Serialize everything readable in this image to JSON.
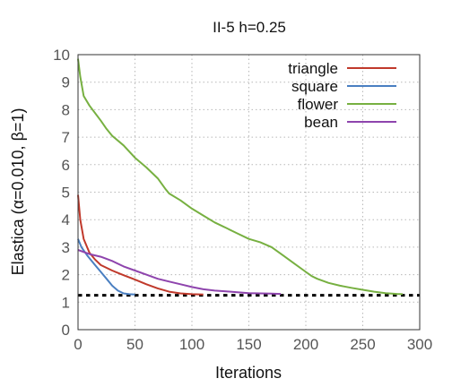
{
  "chart_data": {
    "type": "line",
    "title": "II-5  h=0.25",
    "xlabel": "Iterations",
    "ylabel": "Elastica (α=0.010, β=1)",
    "xlim": [
      0,
      300
    ],
    "ylim": [
      0,
      10
    ],
    "xticks": [
      "0",
      "50",
      "100",
      "150",
      "200",
      "250",
      "300"
    ],
    "yticks": [
      "0",
      "1",
      "2",
      "3",
      "4",
      "5",
      "6",
      "7",
      "8",
      "9",
      "10"
    ],
    "grid": true,
    "legend_position": "top-right",
    "reference_line": {
      "y": 1.25,
      "style": "dashed",
      "color": "#000000"
    },
    "series": [
      {
        "name": "triangle",
        "color": "#c0392b",
        "points": [
          [
            0,
            4.9
          ],
          [
            2,
            4.0
          ],
          [
            5,
            3.3
          ],
          [
            10,
            2.8
          ],
          [
            15,
            2.55
          ],
          [
            20,
            2.35
          ],
          [
            30,
            2.15
          ],
          [
            40,
            1.98
          ],
          [
            50,
            1.82
          ],
          [
            60,
            1.65
          ],
          [
            70,
            1.5
          ],
          [
            80,
            1.38
          ],
          [
            90,
            1.32
          ],
          [
            100,
            1.29
          ],
          [
            110,
            1.28
          ]
        ]
      },
      {
        "name": "square",
        "color": "#4a7fc1",
        "points": [
          [
            0,
            3.3
          ],
          [
            3,
            3.0
          ],
          [
            8,
            2.7
          ],
          [
            15,
            2.35
          ],
          [
            20,
            2.1
          ],
          [
            25,
            1.85
          ],
          [
            30,
            1.6
          ],
          [
            35,
            1.42
          ],
          [
            40,
            1.32
          ],
          [
            45,
            1.29
          ],
          [
            50,
            1.28
          ]
        ]
      },
      {
        "name": "flower",
        "color": "#77b041",
        "points": [
          [
            0,
            9.85
          ],
          [
            2,
            9.2
          ],
          [
            5,
            8.5
          ],
          [
            10,
            8.15
          ],
          [
            20,
            7.6
          ],
          [
            25,
            7.3
          ],
          [
            30,
            7.05
          ],
          [
            40,
            6.7
          ],
          [
            50,
            6.25
          ],
          [
            60,
            5.9
          ],
          [
            70,
            5.5
          ],
          [
            77,
            5.1
          ],
          [
            80,
            4.95
          ],
          [
            90,
            4.7
          ],
          [
            100,
            4.4
          ],
          [
            110,
            4.15
          ],
          [
            120,
            3.9
          ],
          [
            130,
            3.7
          ],
          [
            140,
            3.5
          ],
          [
            150,
            3.3
          ],
          [
            160,
            3.18
          ],
          [
            170,
            3.0
          ],
          [
            180,
            2.7
          ],
          [
            190,
            2.4
          ],
          [
            200,
            2.1
          ],
          [
            205,
            1.95
          ],
          [
            210,
            1.85
          ],
          [
            220,
            1.7
          ],
          [
            230,
            1.6
          ],
          [
            240,
            1.52
          ],
          [
            250,
            1.45
          ],
          [
            260,
            1.38
          ],
          [
            270,
            1.33
          ],
          [
            280,
            1.3
          ],
          [
            285,
            1.29
          ]
        ]
      },
      {
        "name": "bean",
        "color": "#8e44ad",
        "points": [
          [
            0,
            2.9
          ],
          [
            10,
            2.75
          ],
          [
            20,
            2.65
          ],
          [
            30,
            2.5
          ],
          [
            40,
            2.3
          ],
          [
            50,
            2.15
          ],
          [
            60,
            2.0
          ],
          [
            70,
            1.85
          ],
          [
            80,
            1.75
          ],
          [
            90,
            1.65
          ],
          [
            100,
            1.55
          ],
          [
            110,
            1.47
          ],
          [
            120,
            1.42
          ],
          [
            130,
            1.39
          ],
          [
            140,
            1.36
          ],
          [
            150,
            1.33
          ],
          [
            160,
            1.32
          ],
          [
            170,
            1.31
          ],
          [
            178,
            1.3
          ]
        ]
      }
    ]
  }
}
